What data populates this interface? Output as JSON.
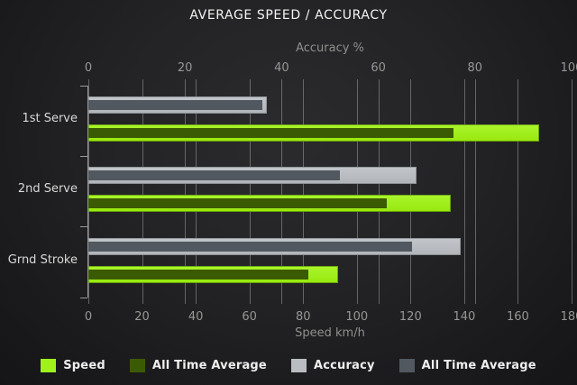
{
  "title": "AVERAGE SPEED / ACCURACY",
  "chart_data": {
    "type": "bar",
    "orientation": "horizontal",
    "grid": true,
    "categories": [
      "1st Serve",
      "2nd Serve",
      "Grnd Stroke"
    ],
    "series": [
      {
        "name": "Speed",
        "axis": "bottom",
        "color_key": "speed",
        "values": [
          168,
          135,
          93
        ]
      },
      {
        "name": "All Time Average",
        "axis": "bottom",
        "color_key": "speed_avg",
        "values": [
          136,
          111,
          82
        ]
      },
      {
        "name": "Accuracy",
        "axis": "top",
        "color_key": "accuracy",
        "values": [
          37,
          68,
          77
        ]
      },
      {
        "name": "All Time Average",
        "axis": "top",
        "color_key": "accuracy_avg",
        "values": [
          36,
          52,
          67
        ]
      }
    ],
    "axes": {
      "top": {
        "label": "Accuracy %",
        "min": 0,
        "max": 100,
        "ticks": [
          0,
          20,
          40,
          60,
          80,
          100
        ]
      },
      "bottom": {
        "label": "Speed km/h",
        "min": 0,
        "max": 180,
        "ticks": [
          0,
          20,
          40,
          60,
          80,
          100,
          120,
          140,
          160,
          180
        ]
      }
    },
    "legend": [
      {
        "label": "Speed",
        "color_key": "speed"
      },
      {
        "label": "All Time Average",
        "color_key": "speed_avg"
      },
      {
        "label": "Accuracy",
        "color_key": "accuracy"
      },
      {
        "label": "All Time Average",
        "color_key": "accuracy_avg"
      }
    ],
    "colors": {
      "speed": "#a0f11c",
      "speed_avg": "#3b5a04",
      "accuracy": "#b9bdc1",
      "accuracy_avg": "#515860"
    },
    "legend_position": "bottom"
  }
}
